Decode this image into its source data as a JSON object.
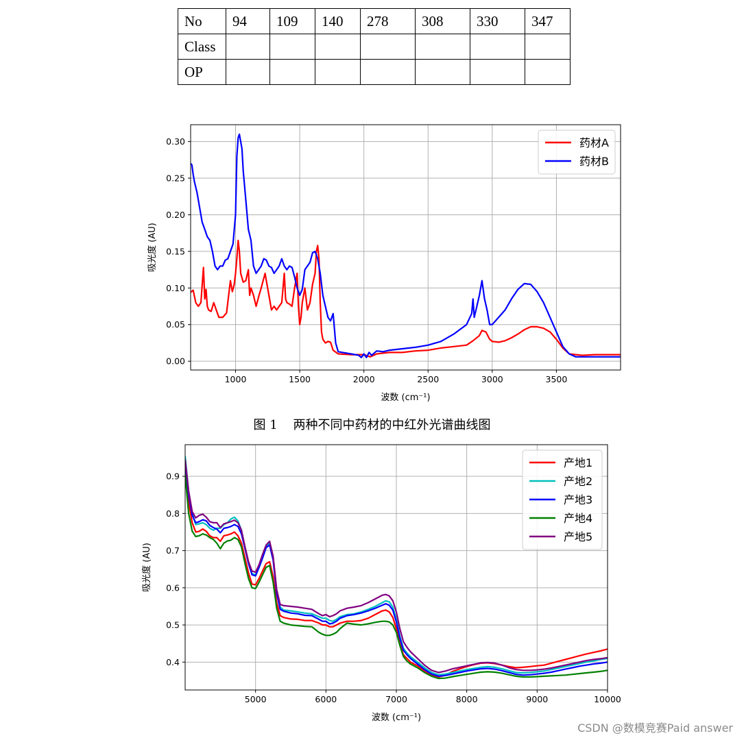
{
  "table": {
    "rows": [
      [
        "No",
        "94",
        "109",
        "140",
        "278",
        "308",
        "330",
        "347"
      ],
      [
        "Class",
        "",
        "",
        "",
        "",
        "",
        "",
        ""
      ],
      [
        "OP",
        "",
        "",
        "",
        "",
        "",
        "",
        ""
      ]
    ]
  },
  "caption": "图 1    两种不同中药材的中红外光谱曲线图",
  "watermark": "CSDN @数模竞赛Paid answer",
  "chart_data": [
    {
      "type": "line",
      "xlabel": "波数 (cm⁻¹)",
      "ylabel": "吸光度 (AU)",
      "xlim": [
        650,
        4000
      ],
      "ylim": [
        -0.012,
        0.323
      ],
      "xticks": [
        1000,
        1500,
        2000,
        2500,
        3000,
        3500
      ],
      "xtick_labels": [
        "1000",
        "1500",
        "2000",
        "2500",
        "3000",
        "3500"
      ],
      "yticks": [
        0.0,
        0.05,
        0.1,
        0.15,
        0.2,
        0.25,
        0.3
      ],
      "ytick_labels": [
        "0.00",
        "0.05",
        "0.10",
        "0.15",
        "0.20",
        "0.25",
        "0.30"
      ],
      "grid": true,
      "legend_position": "top-right",
      "series": [
        {
          "name": "药材A",
          "color": "#ff0000",
          "x": [
            650,
            670,
            690,
            710,
            730,
            750,
            760,
            770,
            780,
            790,
            810,
            830,
            850,
            870,
            900,
            930,
            960,
            975,
            990,
            1000,
            1010,
            1020,
            1030,
            1040,
            1060,
            1080,
            1100,
            1110,
            1120,
            1140,
            1160,
            1180,
            1200,
            1230,
            1240,
            1260,
            1280,
            1300,
            1320,
            1340,
            1360,
            1380,
            1390,
            1400,
            1420,
            1440,
            1460,
            1480,
            1490,
            1500,
            1510,
            1520,
            1540,
            1560,
            1580,
            1600,
            1620,
            1630,
            1640,
            1650,
            1660,
            1670,
            1680,
            1700,
            1720,
            1740,
            1760,
            1800,
            1900,
            2000,
            2050,
            2100,
            2150,
            2200,
            2300,
            2400,
            2500,
            2600,
            2700,
            2800,
            2850,
            2900,
            2920,
            2950,
            2980,
            3000,
            3050,
            3100,
            3150,
            3200,
            3250,
            3300,
            3350,
            3400,
            3450,
            3500,
            3550,
            3600,
            3700,
            3800,
            3900,
            4000
          ],
          "y": [
            0.094,
            0.097,
            0.08,
            0.075,
            0.08,
            0.128,
            0.085,
            0.098,
            0.075,
            0.07,
            0.068,
            0.08,
            0.07,
            0.06,
            0.06,
            0.066,
            0.11,
            0.095,
            0.105,
            0.12,
            0.14,
            0.165,
            0.15,
            0.12,
            0.108,
            0.11,
            0.125,
            0.09,
            0.1,
            0.09,
            0.075,
            0.088,
            0.1,
            0.12,
            0.11,
            0.09,
            0.07,
            0.075,
            0.07,
            0.075,
            0.08,
            0.12,
            0.085,
            0.08,
            0.078,
            0.075,
            0.1,
            0.12,
            0.075,
            0.05,
            0.06,
            0.08,
            0.1,
            0.07,
            0.08,
            0.105,
            0.12,
            0.15,
            0.158,
            0.14,
            0.08,
            0.04,
            0.03,
            0.025,
            0.027,
            0.026,
            0.015,
            0.01,
            0.009,
            0.009,
            0.006,
            0.01,
            0.011,
            0.012,
            0.012,
            0.014,
            0.015,
            0.018,
            0.02,
            0.022,
            0.028,
            0.035,
            0.042,
            0.04,
            0.03,
            0.027,
            0.026,
            0.028,
            0.032,
            0.037,
            0.043,
            0.047,
            0.047,
            0.045,
            0.04,
            0.03,
            0.018,
            0.01,
            0.008,
            0.009,
            0.009,
            0.009
          ]
        },
        {
          "name": "药材B",
          "color": "#0000ff",
          "x": [
            650,
            660,
            670,
            680,
            700,
            720,
            740,
            760,
            780,
            800,
            820,
            840,
            860,
            880,
            900,
            920,
            940,
            960,
            980,
            1000,
            1010,
            1020,
            1030,
            1040,
            1050,
            1060,
            1080,
            1100,
            1120,
            1140,
            1160,
            1180,
            1200,
            1220,
            1240,
            1260,
            1280,
            1300,
            1320,
            1340,
            1360,
            1380,
            1400,
            1420,
            1440,
            1460,
            1480,
            1500,
            1520,
            1540,
            1560,
            1580,
            1600,
            1620,
            1640,
            1660,
            1680,
            1700,
            1720,
            1740,
            1760,
            1780,
            1800,
            1900,
            1960,
            1980,
            2000,
            2020,
            2040,
            2060,
            2100,
            2150,
            2200,
            2300,
            2400,
            2500,
            2600,
            2700,
            2800,
            2840,
            2850,
            2860,
            2880,
            2900,
            2920,
            2940,
            2960,
            2980,
            3000,
            3050,
            3100,
            3150,
            3200,
            3250,
            3300,
            3350,
            3400,
            3450,
            3500,
            3550,
            3600,
            3650,
            3700,
            3750,
            3800,
            3900,
            4000
          ],
          "y": [
            0.27,
            0.268,
            0.255,
            0.245,
            0.23,
            0.21,
            0.19,
            0.18,
            0.17,
            0.165,
            0.15,
            0.13,
            0.125,
            0.13,
            0.13,
            0.138,
            0.14,
            0.15,
            0.16,
            0.2,
            0.28,
            0.305,
            0.31,
            0.3,
            0.29,
            0.26,
            0.22,
            0.18,
            0.165,
            0.13,
            0.12,
            0.125,
            0.13,
            0.14,
            0.138,
            0.13,
            0.128,
            0.12,
            0.125,
            0.13,
            0.14,
            0.13,
            0.125,
            0.13,
            0.128,
            0.115,
            0.1,
            0.09,
            0.098,
            0.125,
            0.13,
            0.135,
            0.148,
            0.15,
            0.14,
            0.12,
            0.09,
            0.075,
            0.06,
            0.055,
            0.065,
            0.025,
            0.013,
            0.01,
            0.008,
            0.005,
            0.01,
            0.005,
            0.012,
            0.008,
            0.014,
            0.013,
            0.015,
            0.017,
            0.019,
            0.022,
            0.027,
            0.037,
            0.05,
            0.065,
            0.085,
            0.06,
            0.075,
            0.09,
            0.11,
            0.085,
            0.07,
            0.05,
            0.05,
            0.06,
            0.07,
            0.085,
            0.098,
            0.106,
            0.105,
            0.095,
            0.08,
            0.06,
            0.04,
            0.02,
            0.01,
            0.006,
            0.006,
            0.006,
            0.006,
            0.006,
            0.006
          ]
        }
      ]
    },
    {
      "type": "line",
      "xlabel": "波数 (cm⁻¹)",
      "ylabel": "吸光度 (AU)",
      "xlim": [
        4000,
        10000
      ],
      "ylim": [
        0.325,
        0.985
      ],
      "xticks": [
        5000,
        6000,
        7000,
        8000,
        9000,
        10000
      ],
      "xtick_labels": [
        "5000",
        "6000",
        "7000",
        "8000",
        "9000",
        "10000"
      ],
      "yticks": [
        0.4,
        0.5,
        0.6,
        0.7,
        0.8,
        0.9
      ],
      "ytick_labels": [
        "0.4",
        "0.5",
        "0.6",
        "0.7",
        "0.8",
        "0.9"
      ],
      "grid": true,
      "legend_position": "top-right",
      "x": [
        4000,
        4050,
        4100,
        4150,
        4200,
        4250,
        4300,
        4350,
        4400,
        4450,
        4500,
        4550,
        4600,
        4650,
        4700,
        4750,
        4800,
        4850,
        4900,
        4950,
        5000,
        5050,
        5100,
        5150,
        5200,
        5250,
        5300,
        5350,
        5400,
        5500,
        5600,
        5700,
        5800,
        5900,
        5950,
        6000,
        6050,
        6100,
        6150,
        6200,
        6300,
        6400,
        6500,
        6600,
        6700,
        6800,
        6850,
        6900,
        6950,
        7000,
        7050,
        7100,
        7150,
        7200,
        7300,
        7400,
        7500,
        7600,
        7700,
        7800,
        7900,
        8000,
        8100,
        8200,
        8300,
        8400,
        8500,
        8600,
        8700,
        8800,
        8900,
        9000,
        9100,
        9200,
        9300,
        9400,
        9500,
        9600,
        9700,
        9800,
        9900,
        10000
      ],
      "series": [
        {
          "name": "产地1",
          "color": "#ff0000",
          "y": [
            0.92,
            0.83,
            0.775,
            0.75,
            0.752,
            0.758,
            0.752,
            0.74,
            0.735,
            0.735,
            0.725,
            0.74,
            0.742,
            0.745,
            0.75,
            0.74,
            0.72,
            0.68,
            0.64,
            0.61,
            0.608,
            0.625,
            0.645,
            0.665,
            0.67,
            0.63,
            0.56,
            0.525,
            0.52,
            0.516,
            0.515,
            0.512,
            0.512,
            0.505,
            0.5,
            0.5,
            0.495,
            0.495,
            0.5,
            0.505,
            0.51,
            0.51,
            0.512,
            0.518,
            0.528,
            0.538,
            0.54,
            0.535,
            0.52,
            0.49,
            0.45,
            0.42,
            0.41,
            0.4,
            0.39,
            0.375,
            0.365,
            0.36,
            0.365,
            0.375,
            0.382,
            0.388,
            0.393,
            0.397,
            0.398,
            0.396,
            0.392,
            0.388,
            0.385,
            0.386,
            0.388,
            0.39,
            0.392,
            0.397,
            0.402,
            0.407,
            0.412,
            0.417,
            0.422,
            0.426,
            0.43,
            0.435
          ]
        },
        {
          "name": "产地2",
          "color": "#00bfbf",
          "y": [
            0.955,
            0.86,
            0.8,
            0.77,
            0.772,
            0.775,
            0.77,
            0.76,
            0.755,
            0.76,
            0.76,
            0.77,
            0.775,
            0.785,
            0.79,
            0.78,
            0.755,
            0.71,
            0.67,
            0.638,
            0.635,
            0.655,
            0.68,
            0.71,
            0.72,
            0.68,
            0.59,
            0.548,
            0.54,
            0.538,
            0.535,
            0.532,
            0.53,
            0.522,
            0.518,
            0.518,
            0.512,
            0.51,
            0.515,
            0.522,
            0.528,
            0.53,
            0.535,
            0.542,
            0.55,
            0.56,
            0.565,
            0.562,
            0.548,
            0.515,
            0.47,
            0.437,
            0.425,
            0.415,
            0.4,
            0.385,
            0.372,
            0.366,
            0.368,
            0.372,
            0.376,
            0.38,
            0.383,
            0.386,
            0.388,
            0.386,
            0.382,
            0.377,
            0.372,
            0.371,
            0.372,
            0.374,
            0.376,
            0.38,
            0.384,
            0.388,
            0.392,
            0.396,
            0.4,
            0.403,
            0.407,
            0.41
          ]
        },
        {
          "name": "产地3",
          "color": "#0000ff",
          "y": [
            0.935,
            0.85,
            0.795,
            0.775,
            0.778,
            0.783,
            0.78,
            0.768,
            0.762,
            0.758,
            0.748,
            0.76,
            0.762,
            0.765,
            0.77,
            0.765,
            0.745,
            0.705,
            0.665,
            0.635,
            0.632,
            0.655,
            0.68,
            0.708,
            0.715,
            0.675,
            0.585,
            0.542,
            0.537,
            0.532,
            0.53,
            0.526,
            0.525,
            0.515,
            0.51,
            0.51,
            0.503,
            0.505,
            0.51,
            0.518,
            0.525,
            0.528,
            0.532,
            0.538,
            0.545,
            0.553,
            0.557,
            0.553,
            0.54,
            0.508,
            0.465,
            0.432,
            0.42,
            0.41,
            0.395,
            0.38,
            0.368,
            0.362,
            0.364,
            0.368,
            0.372,
            0.376,
            0.379,
            0.382,
            0.383,
            0.381,
            0.377,
            0.372,
            0.367,
            0.365,
            0.366,
            0.368,
            0.37,
            0.373,
            0.377,
            0.381,
            0.385,
            0.389,
            0.392,
            0.395,
            0.397,
            0.4
          ]
        },
        {
          "name": "产地4",
          "color": "#008000",
          "y": [
            0.905,
            0.8,
            0.752,
            0.738,
            0.74,
            0.745,
            0.742,
            0.735,
            0.73,
            0.72,
            0.705,
            0.72,
            0.726,
            0.728,
            0.735,
            0.73,
            0.71,
            0.665,
            0.625,
            0.6,
            0.598,
            0.615,
            0.635,
            0.655,
            0.66,
            0.615,
            0.545,
            0.51,
            0.505,
            0.5,
            0.498,
            0.496,
            0.495,
            0.48,
            0.475,
            0.472,
            0.472,
            0.475,
            0.48,
            0.49,
            0.505,
            0.502,
            0.5,
            0.503,
            0.507,
            0.51,
            0.51,
            0.508,
            0.5,
            0.48,
            0.445,
            0.415,
            0.403,
            0.395,
            0.385,
            0.372,
            0.362,
            0.356,
            0.357,
            0.361,
            0.364,
            0.367,
            0.37,
            0.373,
            0.374,
            0.373,
            0.37,
            0.366,
            0.362,
            0.36,
            0.36,
            0.361,
            0.362,
            0.363,
            0.364,
            0.365,
            0.367,
            0.369,
            0.371,
            0.373,
            0.375,
            0.378
          ]
        },
        {
          "name": "产地5",
          "color": "#800080",
          "y": [
            0.945,
            0.86,
            0.805,
            0.788,
            0.795,
            0.798,
            0.79,
            0.778,
            0.775,
            0.775,
            0.762,
            0.772,
            0.775,
            0.778,
            0.782,
            0.775,
            0.755,
            0.71,
            0.67,
            0.645,
            0.642,
            0.662,
            0.69,
            0.715,
            0.725,
            0.685,
            0.595,
            0.555,
            0.552,
            0.55,
            0.548,
            0.545,
            0.542,
            0.53,
            0.525,
            0.528,
            0.522,
            0.525,
            0.53,
            0.538,
            0.545,
            0.548,
            0.552,
            0.56,
            0.57,
            0.58,
            0.582,
            0.578,
            0.565,
            0.535,
            0.49,
            0.455,
            0.44,
            0.428,
            0.41,
            0.392,
            0.378,
            0.372,
            0.376,
            0.382,
            0.386,
            0.39,
            0.394,
            0.398,
            0.399,
            0.397,
            0.392,
            0.385,
            0.38,
            0.378,
            0.378,
            0.379,
            0.381,
            0.384,
            0.388,
            0.392,
            0.396,
            0.4,
            0.404,
            0.407,
            0.409,
            0.412
          ]
        }
      ]
    }
  ]
}
